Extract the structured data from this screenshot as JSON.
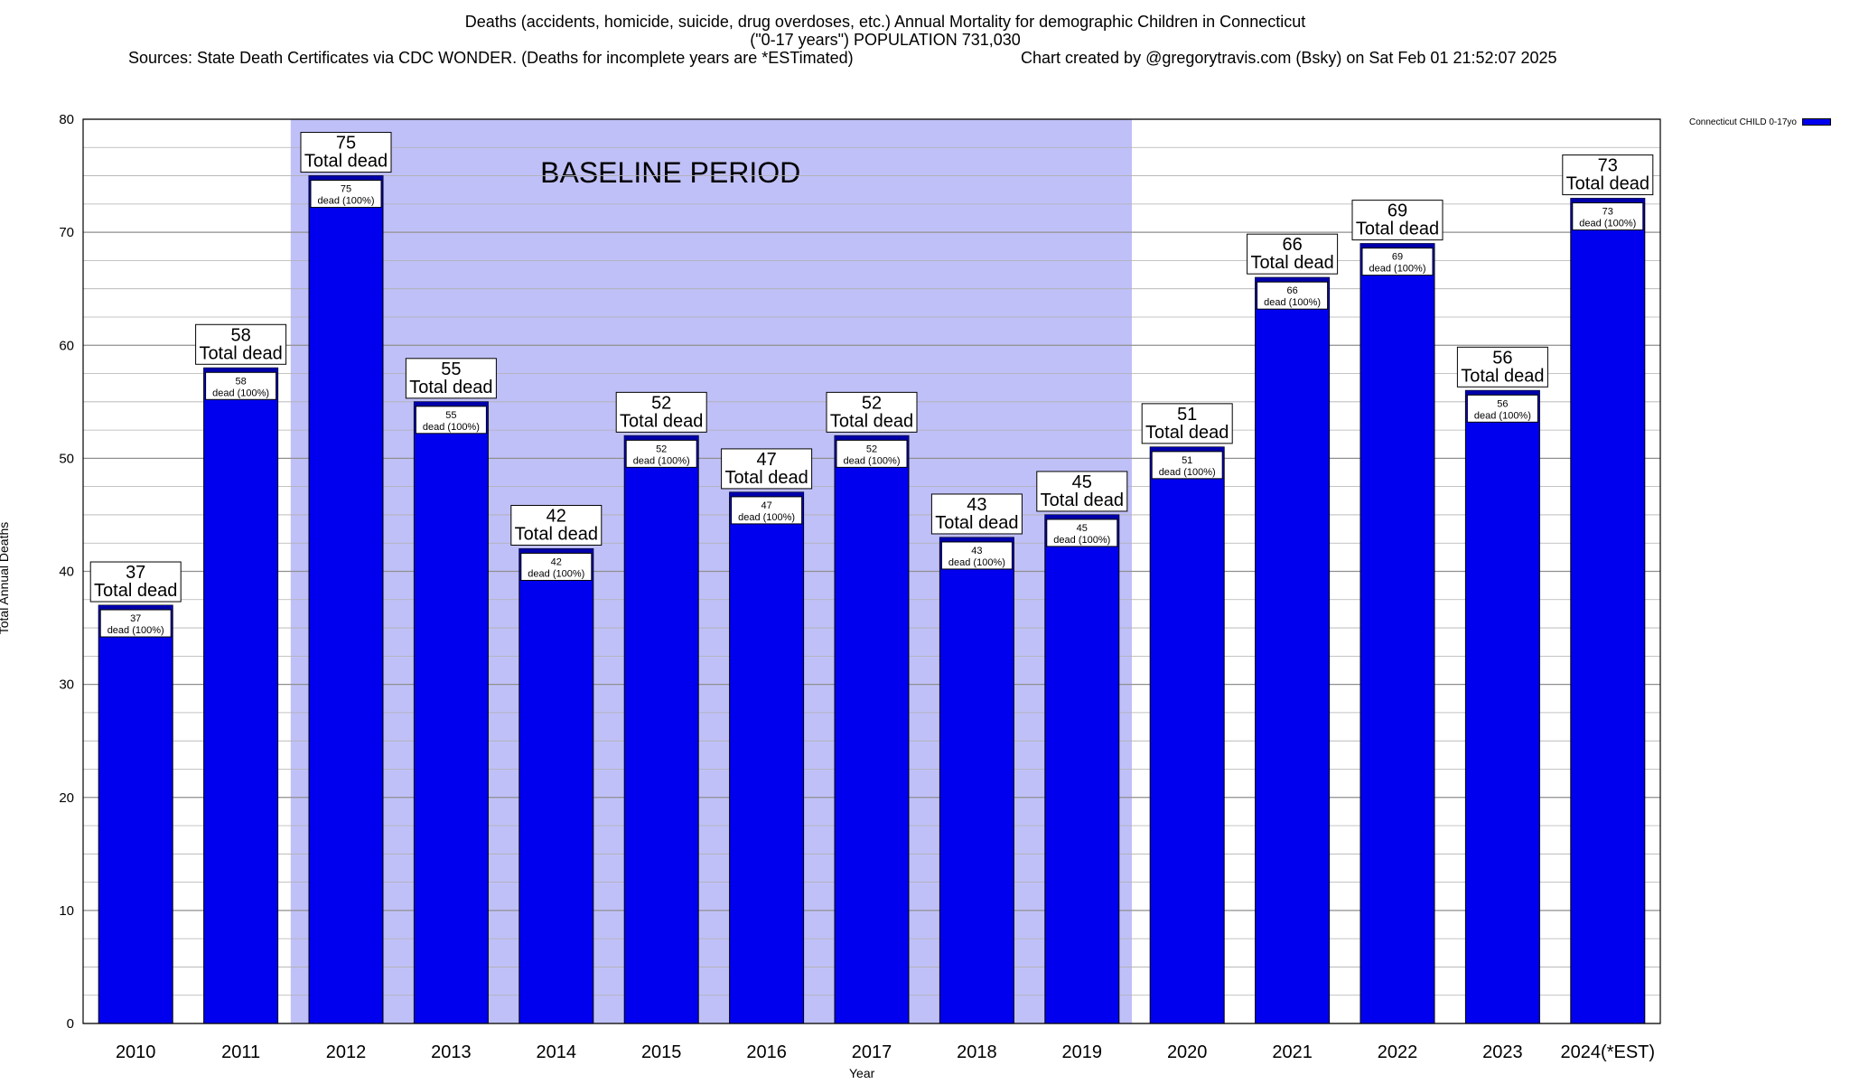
{
  "header": {
    "title_line1": "Deaths (accidents, homicide, suicide, drug overdoses, etc.) Annual Mortality for demographic Children in Connecticut",
    "title_line2": "(\"0-17 years\") POPULATION 731,030",
    "sources": "Sources: State Death Certificates via CDC WONDER. (Deaths for incomplete years are *ESTimated)",
    "credit": "Chart created by @gregorytravis.com (Bsky) on Sat Feb 01 21:52:07 2025"
  },
  "chart_data": {
    "type": "bar",
    "categories": [
      "2010",
      "2011",
      "2012",
      "2013",
      "2014",
      "2015",
      "2016",
      "2017",
      "2018",
      "2019",
      "2020",
      "2021",
      "2022",
      "2023",
      "2024(*EST)"
    ],
    "series": [
      {
        "name": "Connecticut CHILD 0-17yo",
        "values": [
          37,
          58,
          75,
          55,
          42,
          52,
          47,
          52,
          43,
          45,
          51,
          66,
          69,
          56,
          73
        ]
      }
    ],
    "total_label": "Total dead",
    "segment_label": "dead (100%)",
    "xlabel": "Year",
    "ylabel": "Total Annual Deaths",
    "ylim": [
      0,
      80
    ],
    "yticks": [
      0,
      10,
      20,
      30,
      40,
      50,
      60,
      70,
      80
    ],
    "grid": true,
    "legend_position": "top-right",
    "shaded_region": {
      "label": "BASELINE PERIOD",
      "from": "2012",
      "to": "2019",
      "color": "#c0c0f8"
    },
    "colors": {
      "bar": "#0000ee",
      "bar_cap": "#0000aa",
      "grid": "#b0b0b0"
    }
  }
}
